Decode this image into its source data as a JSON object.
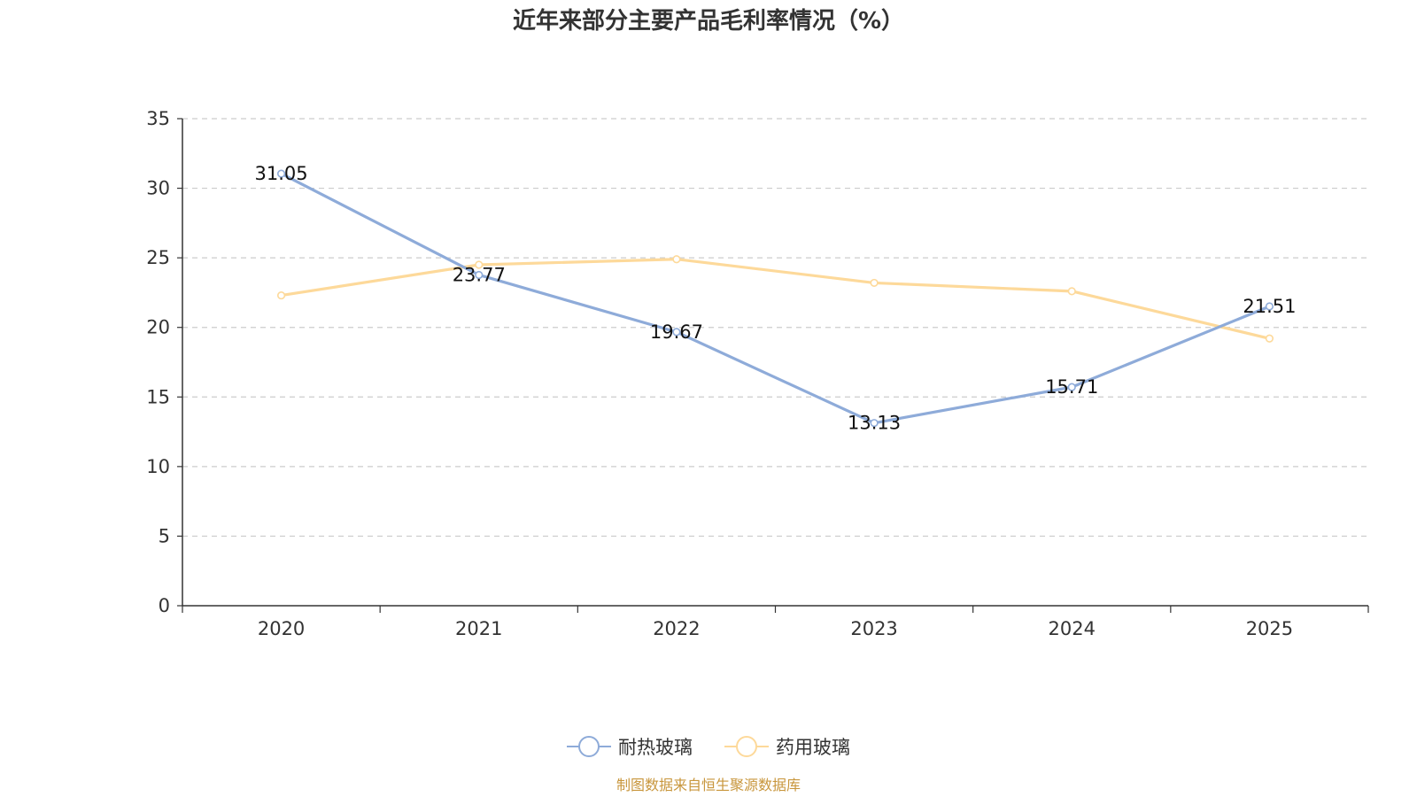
{
  "chart_data": {
    "type": "line",
    "title": "近年来部分主要产品毛利率情况（%）",
    "categories": [
      "2020",
      "2021",
      "2022",
      "2023",
      "2024",
      "2025"
    ],
    "ylim": [
      0,
      35
    ],
    "yticks": [
      0,
      5,
      10,
      15,
      20,
      25,
      30,
      35
    ],
    "grid": true,
    "legend_position": "bottom-center",
    "series": [
      {
        "name": "耐热玻璃",
        "color": "#8eabd9",
        "values": [
          31.05,
          23.77,
          19.67,
          13.13,
          15.71,
          21.51
        ],
        "labels": [
          "31.05",
          "23.77",
          "19.67",
          "13.13",
          "15.71",
          "21.51"
        ],
        "show_labels": true
      },
      {
        "name": "药用玻璃",
        "color": "#fdd99a",
        "values": [
          22.3,
          24.5,
          24.9,
          23.2,
          22.6,
          19.2
        ],
        "show_labels": false
      }
    ],
    "source": "制图数据来自恒生聚源数据库",
    "source_color": "#c8963c"
  }
}
